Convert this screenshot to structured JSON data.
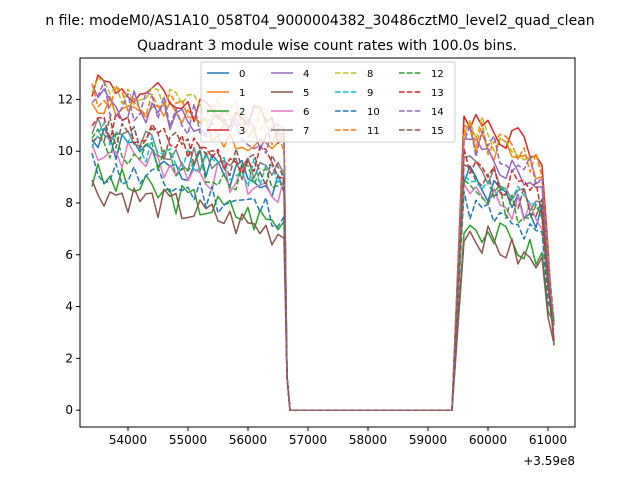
{
  "chart_data": {
    "type": "line",
    "suptitle": "n file: modeM0/AS1A10_058T04_9000004382_30486cztM0_level2_quad_clean",
    "title": "Quadrant 3 module wise count rates with 100.0s bins.",
    "xlabel": "",
    "ylabel": "",
    "x_offset_label": "+3.59e8",
    "xlim": [
      53200,
      61450
    ],
    "ylim": [
      -0.65,
      13.6
    ],
    "x_ticks": [
      54000,
      55000,
      56000,
      57000,
      58000,
      59000,
      60000,
      61000
    ],
    "x_tick_labels": [
      "54000",
      "55000",
      "56000",
      "57000",
      "58000",
      "59000",
      "60000",
      "61000"
    ],
    "y_ticks": [
      0,
      2,
      4,
      6,
      8,
      10,
      12
    ],
    "y_tick_labels": [
      "0",
      "2",
      "4",
      "6",
      "8",
      "10",
      "12"
    ],
    "grid": false,
    "legend_position": "top-center",
    "gap": [
      56700,
      59400
    ],
    "x_range": [
      53400,
      61100
    ],
    "series": [
      {
        "name": "0",
        "color": "#1f77b4",
        "dashed": false,
        "level1": 9.2,
        "level2": 8.0
      },
      {
        "name": "1",
        "color": "#ff7f0e",
        "dashed": false,
        "level1": 10.8,
        "level2": 9.8
      },
      {
        "name": "2",
        "color": "#2ca02c",
        "dashed": false,
        "level1": 7.8,
        "level2": 6.4
      },
      {
        "name": "3",
        "color": "#d62728",
        "dashed": false,
        "level1": 11.5,
        "level2": 10.5
      },
      {
        "name": "4",
        "color": "#9467bd",
        "dashed": false,
        "level1": 10.9,
        "level2": 9.2
      },
      {
        "name": "5",
        "color": "#8c564b",
        "dashed": false,
        "level1": 7.4,
        "level2": 6.0
      },
      {
        "name": "6",
        "color": "#e377c2",
        "dashed": false,
        "level1": 9.0,
        "level2": 7.8
      },
      {
        "name": "7",
        "color": "#7f7f7f",
        "dashed": false,
        "level1": 9.6,
        "level2": 8.4
      },
      {
        "name": "8",
        "color": "#bcbd22",
        "dashed": true,
        "level1": 11.4,
        "level2": 10.1
      },
      {
        "name": "9",
        "color": "#17becf",
        "dashed": true,
        "level1": 9.5,
        "level2": 8.1
      },
      {
        "name": "10",
        "color": "#1f77b4",
        "dashed": true,
        "level1": 8.2,
        "level2": 7.0
      },
      {
        "name": "11",
        "color": "#ff7f0e",
        "dashed": true,
        "level1": 11.1,
        "level2": 9.9
      },
      {
        "name": "12",
        "color": "#2ca02c",
        "dashed": true,
        "level1": 9.2,
        "level2": 7.8
      },
      {
        "name": "13",
        "color": "#d62728",
        "dashed": true,
        "level1": 9.9,
        "level2": 8.6
      },
      {
        "name": "14",
        "color": "#9467bd",
        "dashed": true,
        "level1": 11.0,
        "level2": 9.6
      },
      {
        "name": "15",
        "color": "#8c564b",
        "dashed": true,
        "level1": 9.7,
        "level2": 8.3
      }
    ]
  }
}
